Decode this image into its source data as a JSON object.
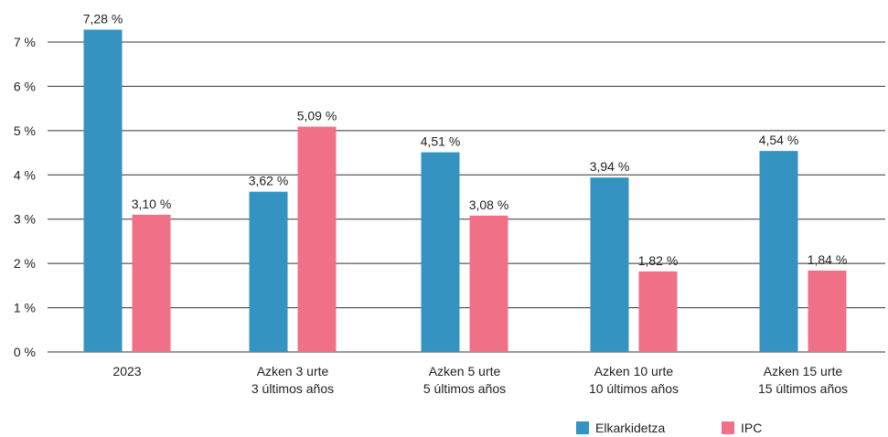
{
  "chart_data": {
    "type": "bar",
    "categories": [
      [
        "2023"
      ],
      [
        "Azken 3 urte",
        "3 últimos años"
      ],
      [
        "Azken 5 urte",
        "5 últimos años"
      ],
      [
        "Azken 10 urte",
        "10 últimos años"
      ],
      [
        "Azken 15 urte",
        "15 últimos años"
      ]
    ],
    "series": [
      {
        "name": "Elkarkidetza",
        "color": "#3593c2",
        "values": [
          7.28,
          3.62,
          4.51,
          3.94,
          4.54
        ],
        "labels": [
          "7,28 %",
          "3,62 %",
          "4,51 %",
          "3,94 %",
          "4,54 %"
        ]
      },
      {
        "name": "IPC",
        "color": "#f07087",
        "values": [
          3.1,
          5.09,
          3.08,
          1.82,
          1.84
        ],
        "labels": [
          "3,10 %",
          "5,09 %",
          "3,08 %",
          "1,82 %",
          "1,84 %"
        ]
      }
    ],
    "ylim": [
      0,
      7
    ],
    "yticks": [
      0,
      1,
      2,
      3,
      4,
      5,
      6,
      7
    ],
    "ytick_labels": [
      "0 %",
      "1 %",
      "2 %",
      "3 %",
      "4 %",
      "5 %",
      "6 %",
      "7 %"
    ],
    "grid": true,
    "legend_position": "bottom-right",
    "title": "",
    "xlabel": "",
    "ylabel": ""
  }
}
